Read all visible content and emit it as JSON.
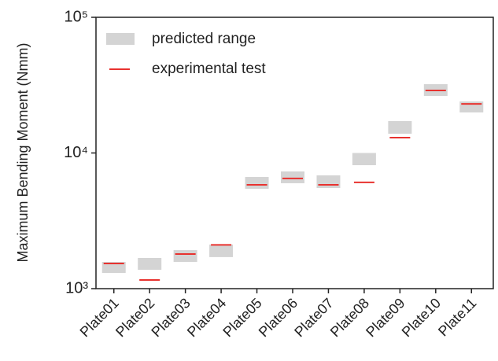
{
  "chart_data": {
    "type": "range",
    "ylabel": "Maximum Bending Moment (Nmm)",
    "categories": [
      "Plate01",
      "Plate02",
      "Plate03",
      "Plate04",
      "Plate05",
      "Plate06",
      "Plate07",
      "Plate08",
      "Plate09",
      "Plate10",
      "Plate11"
    ],
    "series": [
      {
        "name": "predicted range",
        "color": "#d4d4d4",
        "low": [
          1306,
          1377,
          1574,
          1708,
          5445,
          5985,
          5520,
          8130,
          13870,
          26300,
          19900
        ],
        "high": [
          1574,
          1683,
          1922,
          2113,
          6653,
          7310,
          6840,
          10000,
          17180,
          32140,
          23990
        ]
      },
      {
        "name": "experimental test",
        "color": "#e8322f",
        "values": [
          1534,
          1158,
          1800,
          2100,
          5820,
          6490,
          5820,
          6070,
          12970,
          28900,
          23010
        ]
      }
    ],
    "yscale": "log",
    "ylim": [
      1000,
      100000
    ],
    "yticks": [
      {
        "value": 1000,
        "label": "10³"
      },
      {
        "value": 10000,
        "label": "10⁴"
      },
      {
        "value": 100000,
        "label": "10⁵"
      }
    ],
    "legend": "upper left"
  }
}
